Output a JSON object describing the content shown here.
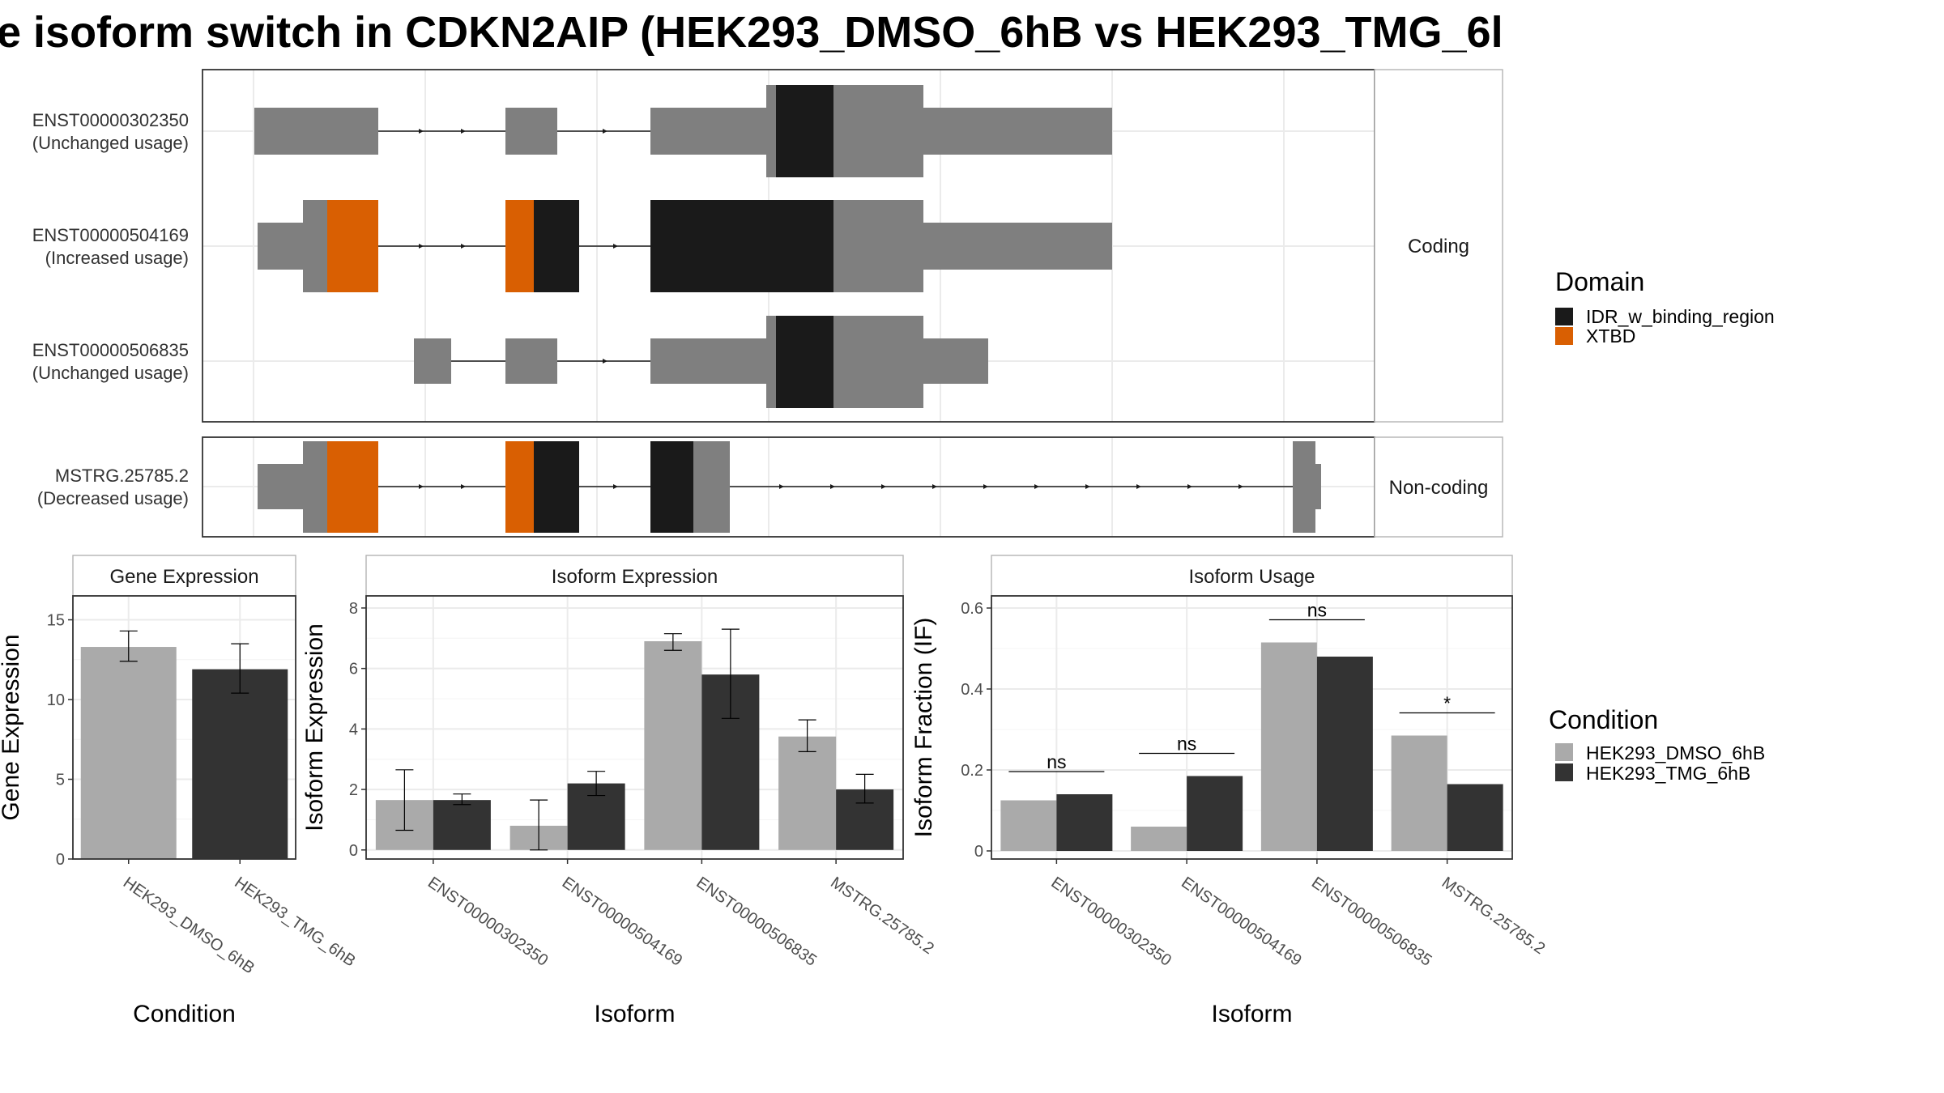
{
  "title": "e isoform switch in CDKN2AIP (HEK293_DMSO_6hB vs HEK293_TMG_6l",
  "colors": {
    "exon": "#7f7f7f",
    "IDR_w_binding_region": "#1a1a1a",
    "XTBD": "#d95f02",
    "HEK293_DMSO_6hB": "#aaaaaa",
    "HEK293_TMG_6hB": "#333333"
  },
  "transcripts": {
    "coding_label": "Coding",
    "noncoding_label": "Non-coding",
    "items": [
      {
        "id": "ENST00000302350",
        "usage": "(Unchanged usage)",
        "group": "coding"
      },
      {
        "id": "ENST00000504169",
        "usage": "(Increased usage)",
        "group": "coding"
      },
      {
        "id": "ENST00000506835",
        "usage": "(Unchanged usage)",
        "group": "coding"
      },
      {
        "id": "MSTRG.25785.2",
        "usage": "(Decreased usage)",
        "group": "noncoding"
      }
    ]
  },
  "domain_legend": {
    "title": "Domain",
    "items": [
      {
        "label": "IDR_w_binding_region",
        "color": "#1a1a1a"
      },
      {
        "label": "XTBD",
        "color": "#d95f02"
      }
    ]
  },
  "condition_legend": {
    "title": "Condition",
    "items": [
      {
        "label": "HEK293_DMSO_6hB",
        "color": "#aaaaaa"
      },
      {
        "label": "HEK293_TMG_6hB",
        "color": "#333333"
      }
    ]
  },
  "chart_data": [
    {
      "type": "bar",
      "title": "Gene Expression",
      "xlabel": "Condition",
      "ylabel": "Gene Expression",
      "categories": [
        "HEK293_DMSO_6hB",
        "HEK293_TMG_6hB"
      ],
      "values": [
        13.3,
        11.9
      ],
      "error_low": [
        12.4,
        10.4
      ],
      "error_high": [
        14.3,
        13.5
      ],
      "yticks": [
        0,
        5,
        10,
        15
      ],
      "ylim": [
        0,
        16.5
      ]
    },
    {
      "type": "bar",
      "title": "Isoform Expression",
      "xlabel": "Isoform",
      "ylabel": "Isoform Expression",
      "categories": [
        "ENST00000302350",
        "ENST00000504169",
        "ENST00000506835",
        "MSTRG.25785.2"
      ],
      "series": [
        {
          "name": "HEK293_DMSO_6hB",
          "values": [
            1.65,
            0.8,
            6.9,
            3.75
          ],
          "error_low": [
            0.65,
            0.0,
            6.6,
            3.25
          ],
          "error_high": [
            2.65,
            1.65,
            7.15,
            4.3
          ]
        },
        {
          "name": "HEK293_TMG_6hB",
          "values": [
            1.65,
            2.2,
            5.8,
            2.0
          ],
          "error_low": [
            1.5,
            1.8,
            4.35,
            1.55
          ],
          "error_high": [
            1.85,
            2.6,
            7.3,
            2.5
          ]
        }
      ],
      "yticks": [
        0,
        2,
        4,
        6,
        8
      ],
      "ylim": [
        -0.3,
        8.4
      ]
    },
    {
      "type": "bar",
      "title": "Isoform Usage",
      "xlabel": "Isoform",
      "ylabel": "Isoform Fraction (IF)",
      "categories": [
        "ENST00000302350",
        "ENST00000504169",
        "ENST00000506835",
        "MSTRG.25785.2"
      ],
      "series": [
        {
          "name": "HEK293_DMSO_6hB",
          "values": [
            0.125,
            0.06,
            0.515,
            0.285
          ]
        },
        {
          "name": "HEK293_TMG_6hB",
          "values": [
            0.14,
            0.185,
            0.48,
            0.165
          ]
        }
      ],
      "significance": [
        "ns",
        "ns",
        "ns",
        "*"
      ],
      "yticks": [
        0.0,
        0.2,
        0.4,
        0.6
      ],
      "ylim": [
        -0.02,
        0.63
      ]
    }
  ]
}
